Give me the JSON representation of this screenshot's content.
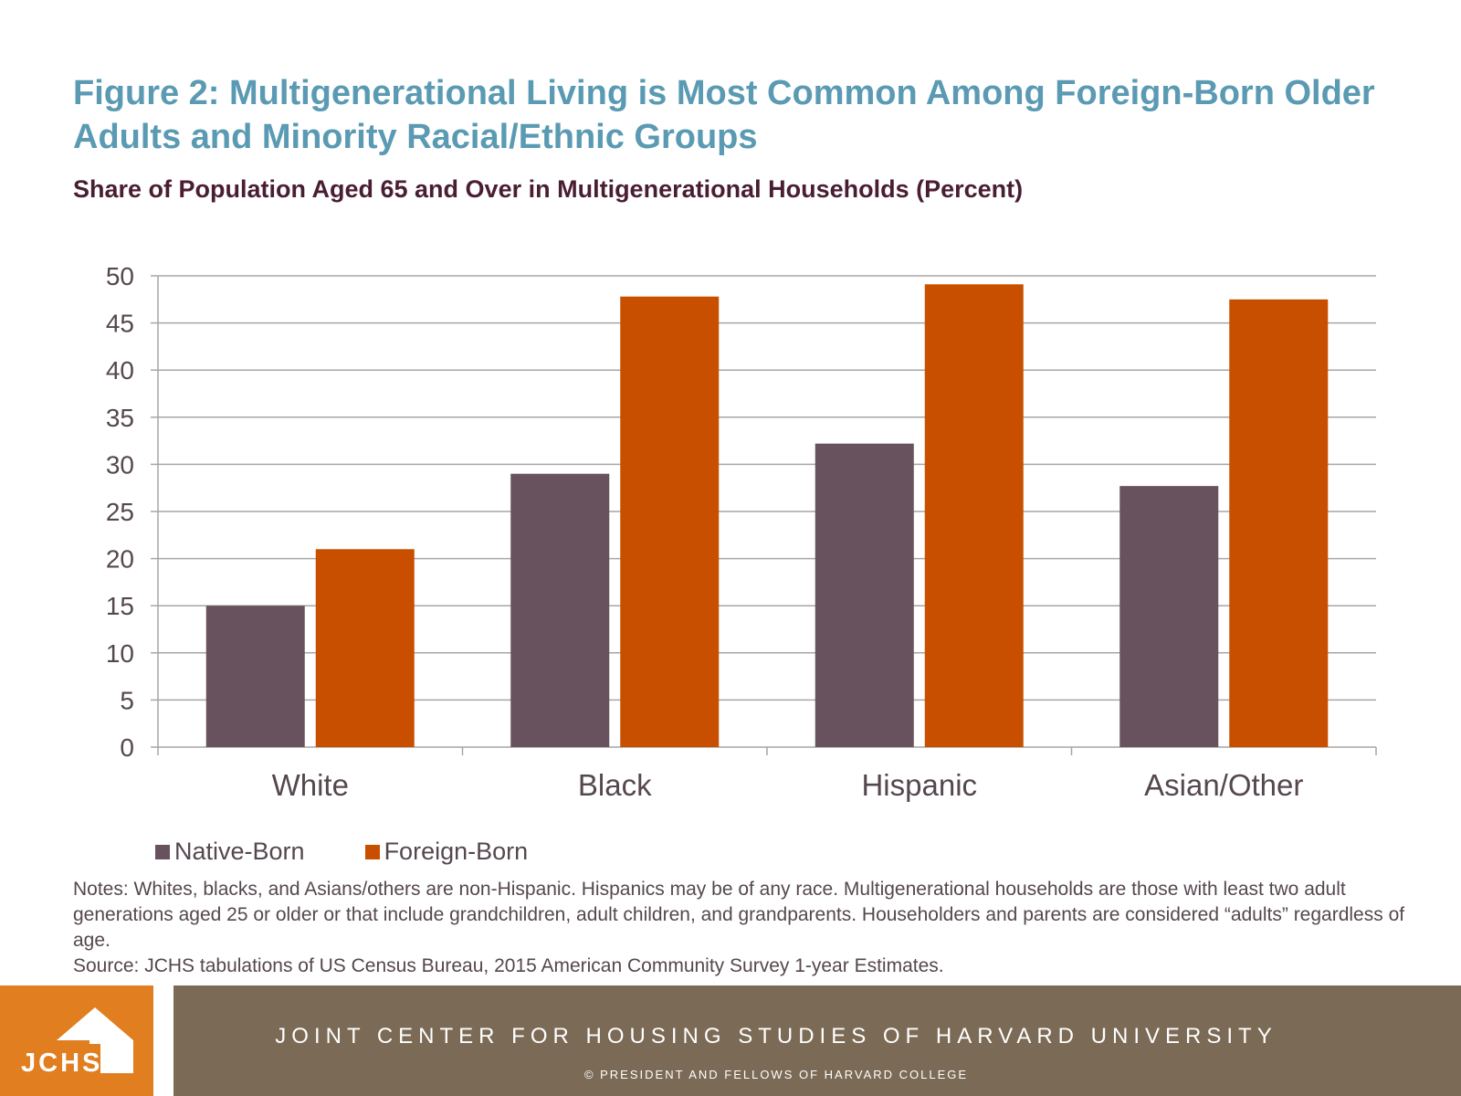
{
  "header": {
    "title": "Figure 2: Multigenerational Living is Most Common Among Foreign-Born Older Adults and Minority Racial/Ethnic Groups",
    "subtitle": "Share of Population Aged 65 and Over in Multigenerational Households (Percent)"
  },
  "chart_data": {
    "type": "bar",
    "title": "",
    "xlabel": "",
    "ylabel": "",
    "categories": [
      "White",
      "Black",
      "Hispanic",
      "Asian/Other"
    ],
    "series": [
      {
        "name": "Native-Born",
        "values": [
          15.0,
          29.0,
          32.2,
          27.7
        ],
        "color": "#68525e"
      },
      {
        "name": "Foreign-Born",
        "values": [
          21.0,
          47.8,
          49.1,
          47.5
        ],
        "color": "#c94f00"
      }
    ],
    "ylim": [
      0,
      50
    ],
    "yticks": [
      "0",
      "5",
      "10",
      "15",
      "20",
      "25",
      "30",
      "35",
      "40",
      "45",
      "50"
    ],
    "grid": true,
    "legend_position": "bottom-left"
  },
  "notes": {
    "text": "Notes: Whites, blacks, and Asians/others are non-Hispanic. Hispanics may be of any race. Multigenerational households are those with least two adult generations aged 25 or older or that include grandchildren, adult children, and grandparents. Householders and parents are considered “adults” regardless of age.",
    "source": "Source: JCHS tabulations of US Census Bureau, 2015 American Community Survey 1-year Estimates."
  },
  "footer": {
    "logo_text": "JCHS",
    "organization": "JOINT CENTER FOR HOUSING STUDIES OF HARVARD UNIVERSITY",
    "copyright": "© PRESIDENT AND FELLOWS OF HARVARD COLLEGE"
  },
  "colors": {
    "title": "#5a9ab3",
    "subtitle": "#4a1e32",
    "logo_background": "#e07e20",
    "footer_background": "#7b6a55"
  }
}
